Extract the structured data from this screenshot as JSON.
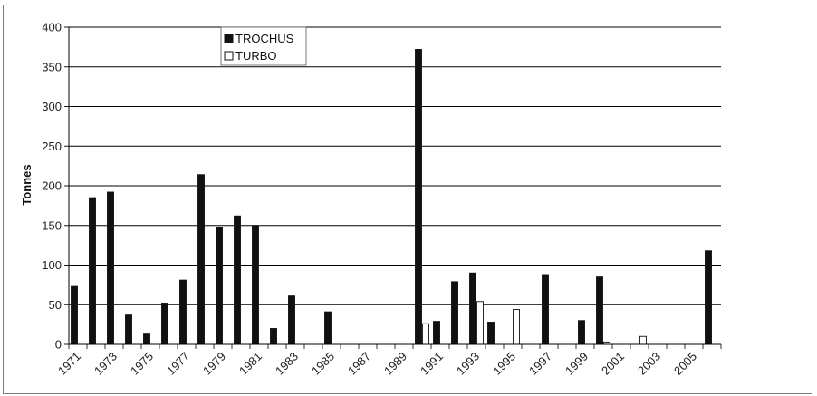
{
  "chart_data": {
    "type": "bar",
    "title": "",
    "xlabel": "",
    "ylabel": "Tonnes",
    "ylim": [
      0,
      400
    ],
    "yticks": [
      0,
      50,
      100,
      150,
      200,
      250,
      300,
      350,
      400
    ],
    "grid": true,
    "legend_position": "top-center",
    "categories": [
      1971,
      1972,
      1973,
      1974,
      1975,
      1976,
      1977,
      1978,
      1979,
      1980,
      1981,
      1982,
      1983,
      1984,
      1985,
      1986,
      1987,
      1988,
      1989,
      1990,
      1991,
      1992,
      1993,
      1994,
      1995,
      1996,
      1997,
      1998,
      1999,
      2000,
      2001,
      2002,
      2003,
      2004,
      2005,
      2006
    ],
    "xtick_labels": [
      "1971",
      "1973",
      "1975",
      "1977",
      "1979",
      "1981",
      "1983",
      "1985",
      "1987",
      "1989",
      "1991",
      "1993",
      "1995",
      "1997",
      "1999",
      "2001",
      "2003",
      "2005"
    ],
    "series": [
      {
        "name": "TROCHUS",
        "color": "#111111",
        "values": [
          73,
          185,
          192,
          37,
          13,
          52,
          81,
          214,
          148,
          162,
          150,
          20,
          61,
          0,
          41,
          0,
          0,
          0,
          0,
          372,
          29,
          79,
          90,
          28,
          0,
          0,
          88,
          0,
          30,
          85,
          0,
          0,
          0,
          0,
          0,
          118
        ]
      },
      {
        "name": "TURBO",
        "color": "#ffffff",
        "values": [
          0,
          0,
          0,
          0,
          0,
          0,
          0,
          0,
          0,
          0,
          0,
          0,
          0,
          0,
          0,
          0,
          0,
          0,
          0,
          26,
          0,
          0,
          54,
          0,
          44,
          0,
          0,
          0,
          0,
          3,
          0,
          10,
          0,
          0,
          0,
          0
        ]
      }
    ]
  }
}
